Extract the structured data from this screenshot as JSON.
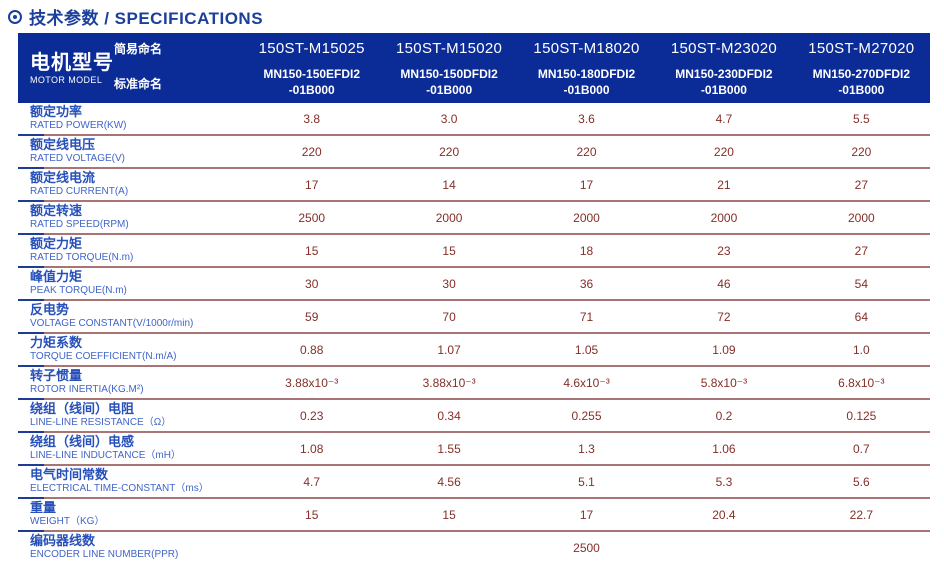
{
  "title": {
    "icon": "circle-dot",
    "text": "技术参数 / SPECIFICATIONS"
  },
  "table": {
    "header": {
      "motor_model_zh": "电机型号",
      "motor_model_en": "MOTOR MODEL",
      "simple_name_label": "简易命名",
      "standard_name_label": "标准命名",
      "columns": [
        {
          "simple": "150ST-M15025",
          "standard_line1": "MN150-150EFDI2",
          "standard_line2": "-01B000"
        },
        {
          "simple": "150ST-M15020",
          "standard_line1": "MN150-150DFDI2",
          "standard_line2": "-01B000"
        },
        {
          "simple": "150ST-M18020",
          "standard_line1": "MN150-180DFDI2",
          "standard_line2": "-01B000"
        },
        {
          "simple": "150ST-M23020",
          "standard_line1": "MN150-230DFDI2",
          "standard_line2": "-01B000"
        },
        {
          "simple": "150ST-M27020",
          "standard_line1": "MN150-270DFDI2",
          "standard_line2": "-01B000"
        }
      ]
    },
    "rows": [
      {
        "zh": "额定功率",
        "en": "RATED POWER(KW)",
        "values": [
          "3.8",
          "3.0",
          "3.6",
          "4.7",
          "5.5"
        ]
      },
      {
        "zh": "额定线电压",
        "en": "RATED VOLTAGE(V)",
        "values": [
          "220",
          "220",
          "220",
          "220",
          "220"
        ]
      },
      {
        "zh": "额定线电流",
        "en": "RATED CURRENT(A)",
        "values": [
          "17",
          "14",
          "17",
          "21",
          "27"
        ]
      },
      {
        "zh": "额定转速",
        "en": "RATED SPEED(RPM)",
        "values": [
          "2500",
          "2000",
          "2000",
          "2000",
          "2000"
        ]
      },
      {
        "zh": "额定力矩",
        "en": "RATED TORQUE(N.m)",
        "values": [
          "15",
          "15",
          "18",
          "23",
          "27"
        ]
      },
      {
        "zh": "峰值力矩",
        "en": "PEAK TORQUE(N.m)",
        "values": [
          "30",
          "30",
          "36",
          "46",
          "54"
        ]
      },
      {
        "zh": "反电势",
        "en": "VOLTAGE CONSTANT(V/1000r/min)",
        "values": [
          "59",
          "70",
          "71",
          "72",
          "64"
        ]
      },
      {
        "zh": "力矩系数",
        "en": "TORQUE COEFFICIENT(N.m/A)",
        "values": [
          "0.88",
          "1.07",
          "1.05",
          "1.09",
          "1.0"
        ]
      },
      {
        "zh": "转子惯量",
        "en": "ROTOR INERTIA(KG.M²)",
        "values": [
          "3.88x10⁻³",
          "3.88x10⁻³",
          "4.6x10⁻³",
          "5.8x10⁻³",
          "6.8x10⁻³"
        ]
      },
      {
        "zh": "绕组（线间）电阻",
        "en": "LINE-LINE RESISTANCE（Ω）",
        "values": [
          "0.23",
          "0.34",
          "0.255",
          "0.2",
          "0.125"
        ]
      },
      {
        "zh": "绕组（线间）电感",
        "en": "LINE-LINE INDUCTANCE（mH）",
        "values": [
          "1.08",
          "1.55",
          "1.3",
          "1.06",
          "0.7"
        ]
      },
      {
        "zh": "电气时间常数",
        "en": "ELECTRICAL TIME-CONSTANT（ms）",
        "values": [
          "4.7",
          "4.56",
          "5.1",
          "5.3",
          "5.6"
        ]
      },
      {
        "zh": "重量",
        "en": "WEIGHT（KG）",
        "values": [
          "15",
          "15",
          "17",
          "20.4",
          "22.7"
        ]
      },
      {
        "zh": "编码器线数",
        "en": "ENCODER LINE NUMBER(PPR)",
        "span_value": "2500"
      }
    ],
    "colors": {
      "header_background": "#0b2b96",
      "title_blue": "#1c3f9b",
      "label_blue": "#2750ba",
      "value_maroon": "#842f28",
      "divider_maroon": "#a87474",
      "divider_blue_dash": "#1c3c97"
    }
  }
}
